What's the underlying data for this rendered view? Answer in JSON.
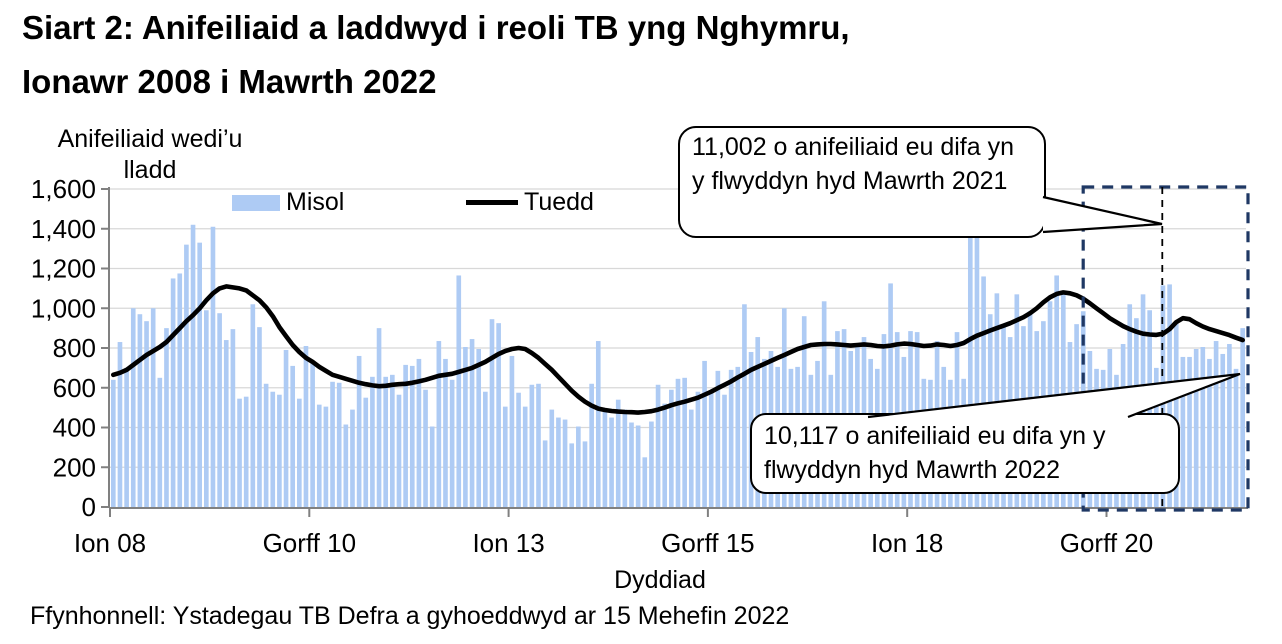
{
  "chart_data": {
    "type": "bar+line",
    "title": "Siart 2: Anifeiliaid a laddwyd i reoli TB yng Nghymru, Ionawr 2008 i Mawrth 2022",
    "title_lines": [
      "Siart 2: Anifeiliaid a laddwyd i reoli TB yng Nghymru,",
      "Ionawr 2008 i Mawrth 2022"
    ],
    "ylabel": "Anifeiliaid wedi’u lladd",
    "ylabel_lines": [
      "Anifeiliaid wedi’u",
      "lladd"
    ],
    "xlabel": "Dyddiad",
    "source": "Ffynhonnell: Ystadegau TB Defra a gyhoeddwyd ar 15 Mehefin 2022",
    "x_unit": "month",
    "x_range": [
      "Ionawr 2008",
      "Mawrth 2022"
    ],
    "ylim": [
      0,
      1600
    ],
    "yticks": [
      0,
      200,
      400,
      600,
      800,
      1000,
      1200,
      1400,
      1600
    ],
    "ytick_labels": [
      "0",
      "200",
      "400",
      "600",
      "800",
      "1,000",
      "1,200",
      "1,400",
      "1,600"
    ],
    "xticks": [
      {
        "label": "Ion 08",
        "month_index": 0
      },
      {
        "label": "Gorff 10",
        "month_index": 30
      },
      {
        "label": "Ion 13",
        "month_index": 60
      },
      {
        "label": "Gorff 15",
        "month_index": 90
      },
      {
        "label": "Ion 18",
        "month_index": 120
      },
      {
        "label": "Gorff 20",
        "month_index": 150
      }
    ],
    "grid": true,
    "legend_position": "top-inside",
    "colors": {
      "bar": "#AECBF4",
      "trend": "#000000",
      "gridline": "#D8D8D8",
      "axis": "#808080",
      "highlight_box": "#1F3864"
    },
    "series": [
      {
        "name": "Misol",
        "type": "bar",
        "color": "#AECBF4",
        "values": [
          640,
          830,
          700,
          1000,
          970,
          935,
          1000,
          650,
          900,
          1150,
          1175,
          1320,
          1420,
          1330,
          990,
          1410,
          975,
          840,
          895,
          545,
          555,
          1020,
          905,
          620,
          580,
          565,
          790,
          710,
          545,
          810,
          730,
          515,
          505,
          630,
          625,
          415,
          490,
          760,
          550,
          655,
          900,
          655,
          665,
          565,
          715,
          710,
          745,
          590,
          405,
          835,
          745,
          640,
          1165,
          805,
          845,
          795,
          580,
          945,
          925,
          505,
          760,
          575,
          505,
          615,
          620,
          335,
          490,
          450,
          440,
          320,
          405,
          330,
          620,
          835,
          490,
          450,
          540,
          490,
          425,
          410,
          250,
          430,
          615,
          520,
          590,
          645,
          650,
          490,
          580,
          735,
          580,
          685,
          565,
          690,
          705,
          1020,
          780,
          855,
          745,
          785,
          705,
          1000,
          695,
          705,
          960,
          665,
          735,
          1035,
          665,
          885,
          895,
          785,
          805,
          855,
          745,
          695,
          870,
          1125,
          880,
          755,
          885,
          880,
          645,
          640,
          835,
          705,
          640,
          880,
          645,
          1490,
          1410,
          1160,
          970,
          1075,
          920,
          855,
          1070,
          910,
          985,
          885,
          935,
          1035,
          1165,
          1075,
          830,
          920,
          985,
          785,
          695,
          690,
          795,
          665,
          820,
          1020,
          950,
          1070,
          990,
          700,
          1115,
          1120,
          935,
          755,
          755,
          795,
          805,
          745,
          835,
          770,
          820,
          695,
          900
        ]
      },
      {
        "name": "Tuedd",
        "type": "line",
        "color": "#000000",
        "values": [
          665,
          675,
          690,
          715,
          740,
          765,
          785,
          805,
          830,
          865,
          900,
          935,
          965,
          1000,
          1040,
          1075,
          1100,
          1110,
          1105,
          1100,
          1090,
          1065,
          1040,
          1005,
          960,
          905,
          860,
          815,
          780,
          750,
          730,
          705,
          685,
          665,
          655,
          645,
          635,
          625,
          618,
          612,
          608,
          610,
          615,
          618,
          620,
          625,
          632,
          640,
          650,
          660,
          665,
          670,
          680,
          690,
          700,
          715,
          730,
          750,
          770,
          785,
          795,
          800,
          795,
          775,
          750,
          720,
          690,
          655,
          620,
          585,
          555,
          530,
          510,
          495,
          488,
          483,
          480,
          478,
          477,
          475,
          478,
          482,
          490,
          500,
          512,
          522,
          530,
          540,
          550,
          565,
          580,
          598,
          615,
          632,
          652,
          670,
          690,
          705,
          720,
          735,
          750,
          765,
          780,
          795,
          805,
          815,
          818,
          820,
          820,
          818,
          815,
          812,
          815,
          818,
          815,
          810,
          808,
          812,
          818,
          822,
          820,
          815,
          810,
          812,
          818,
          815,
          810,
          815,
          825,
          845,
          862,
          875,
          888,
          900,
          912,
          925,
          940,
          955,
          975,
          1000,
          1030,
          1055,
          1072,
          1080,
          1075,
          1065,
          1048,
          1025,
          1000,
          975,
          950,
          930,
          910,
          895,
          882,
          872,
          868,
          866,
          872,
          895,
          930,
          950,
          945,
          925,
          908,
          895,
          885,
          875,
          865,
          852,
          840
        ]
      }
    ],
    "annotations": [
      {
        "id": "callout-2021",
        "value": "11,002",
        "text": "11,002 o anifeiliaid eu difa yn y flwyddyn hyd Mawrth 2021"
      },
      {
        "id": "callout-2022",
        "value": "10,117",
        "text": "10,117 o anifeiliaid eu difa yn y flwyddyn hyd Mawrth 2022"
      }
    ],
    "highlight_box": {
      "start_month_index": 146.5,
      "end_month_index": 171.3,
      "divider_month_index": 158.4,
      "color": "#1F3864"
    }
  }
}
